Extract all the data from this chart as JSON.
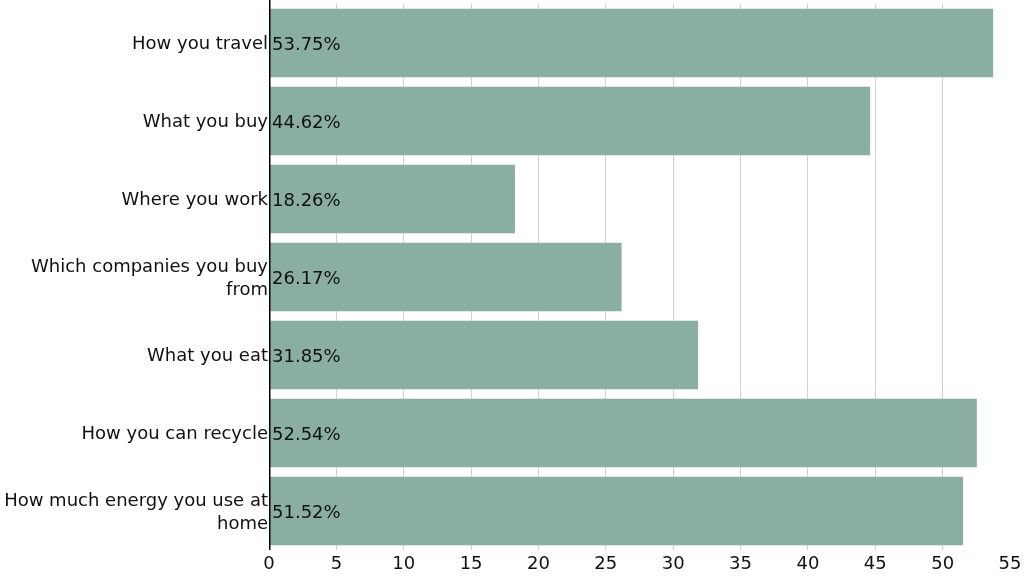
{
  "chart_data": {
    "type": "bar",
    "orientation": "horizontal",
    "categories": [
      "How you travel",
      "What you buy",
      "Where you work",
      "Which companies you buy from",
      "What you eat",
      "How you can recycle",
      "How much energy you use at home"
    ],
    "values": [
      53.75,
      44.62,
      18.26,
      26.17,
      31.85,
      52.54,
      51.52
    ],
    "value_labels": [
      "53.75%",
      "44.62%",
      "18.26%",
      "26.17%",
      "31.85%",
      "52.54%",
      "51.52%"
    ],
    "color": "#8aafa2",
    "xlim": [
      0,
      55
    ],
    "xticks": [
      0,
      5,
      10,
      15,
      20,
      25,
      30,
      35,
      40,
      45,
      50,
      55
    ],
    "grid": "x"
  }
}
